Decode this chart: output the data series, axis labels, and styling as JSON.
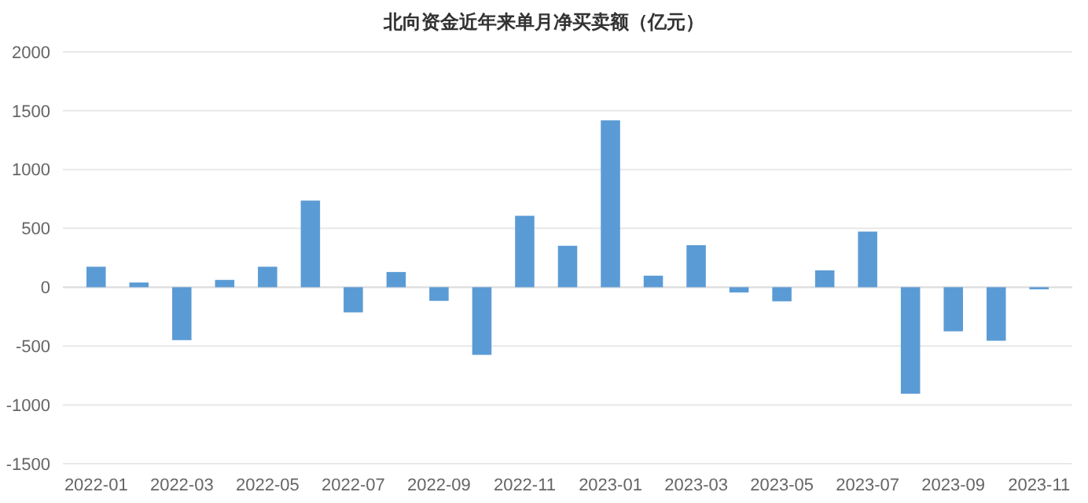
{
  "chart_data": {
    "type": "bar",
    "title": "北向资金近年来单月净买卖额（亿元）",
    "categories": [
      "2022-01",
      null,
      "2022-03",
      null,
      "2022-05",
      null,
      "2022-07",
      null,
      "2022-09",
      null,
      "2022-11",
      null,
      "2023-01",
      null,
      "2023-03",
      null,
      "2023-05",
      null,
      "2023-07",
      null,
      "2023-09",
      null,
      "2023-11"
    ],
    "values": [
      174,
      40,
      -450,
      62,
      174,
      736,
      -214,
      129,
      -116,
      -575,
      607,
      352,
      1418,
      98,
      357,
      -45,
      -120,
      143,
      473,
      -905,
      -375,
      -455,
      -18
    ],
    "color": "#5b9bd5",
    "ylim": [
      -1500,
      2000
    ],
    "yticks": [
      -1500,
      -1000,
      -500,
      0,
      500,
      1000,
      1500,
      2000
    ],
    "grid": "y"
  }
}
